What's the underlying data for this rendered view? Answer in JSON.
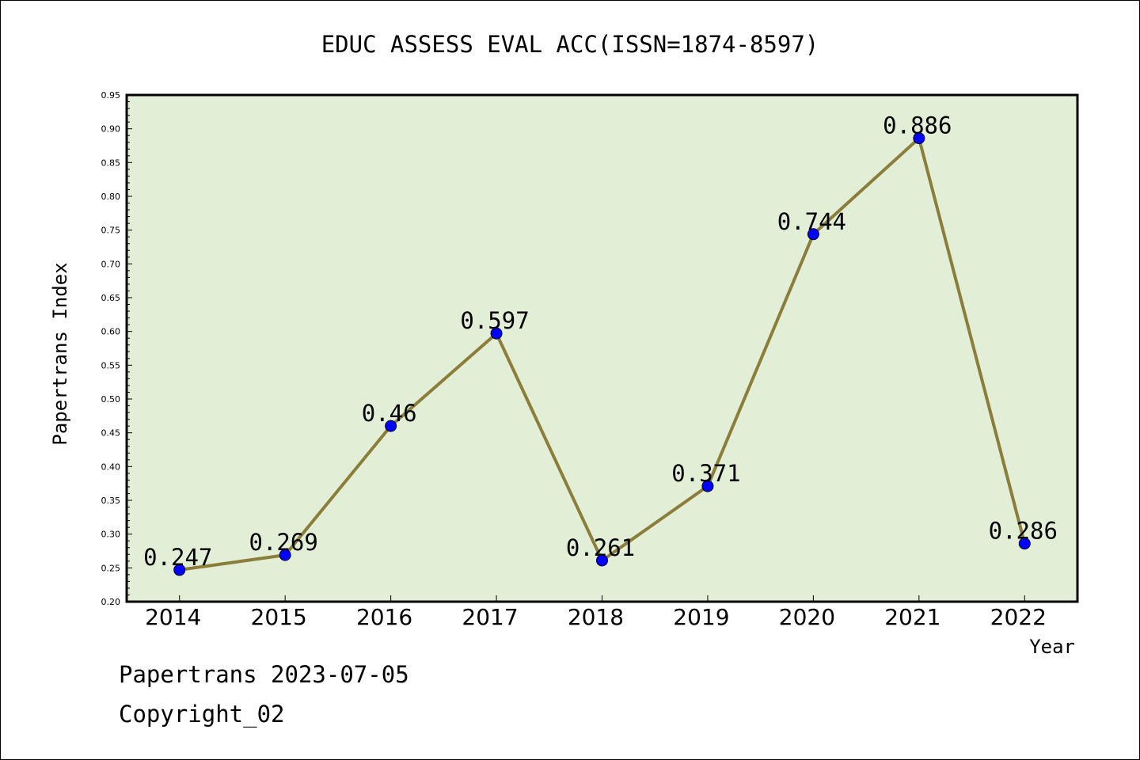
{
  "chart_data": {
    "type": "line",
    "title": "EDUC ASSESS EVAL ACC(ISSN=1874-8597)",
    "xlabel": "Year",
    "ylabel": "Papertrans Index",
    "categories": [
      "2014",
      "2015",
      "2016",
      "2017",
      "2018",
      "2019",
      "2020",
      "2021",
      "2022"
    ],
    "series": [
      {
        "values": [
          0.247,
          0.269,
          0.46,
          0.597,
          0.261,
          0.371,
          0.744,
          0.886,
          0.286
        ],
        "labels": [
          "0.247",
          "0.269",
          "0.46",
          "0.597",
          "0.261",
          "0.371",
          "0.744",
          "0.886",
          "0.286"
        ]
      }
    ],
    "ylim": [
      0.2,
      0.95
    ],
    "yticks": [
      "0.20",
      "0.25",
      "0.30",
      "0.35",
      "0.40",
      "0.45",
      "0.50",
      "0.55",
      "0.60",
      "0.65",
      "0.70",
      "0.75",
      "0.80",
      "0.85",
      "0.90",
      "0.95"
    ],
    "grid": false,
    "colors": {
      "plot_background": "#e2efd6",
      "line": "#8b7d3a",
      "marker": "#0000ff"
    }
  },
  "footer": {
    "line1": "Papertrans 2023-07-05",
    "line2": "Copyright_02"
  }
}
